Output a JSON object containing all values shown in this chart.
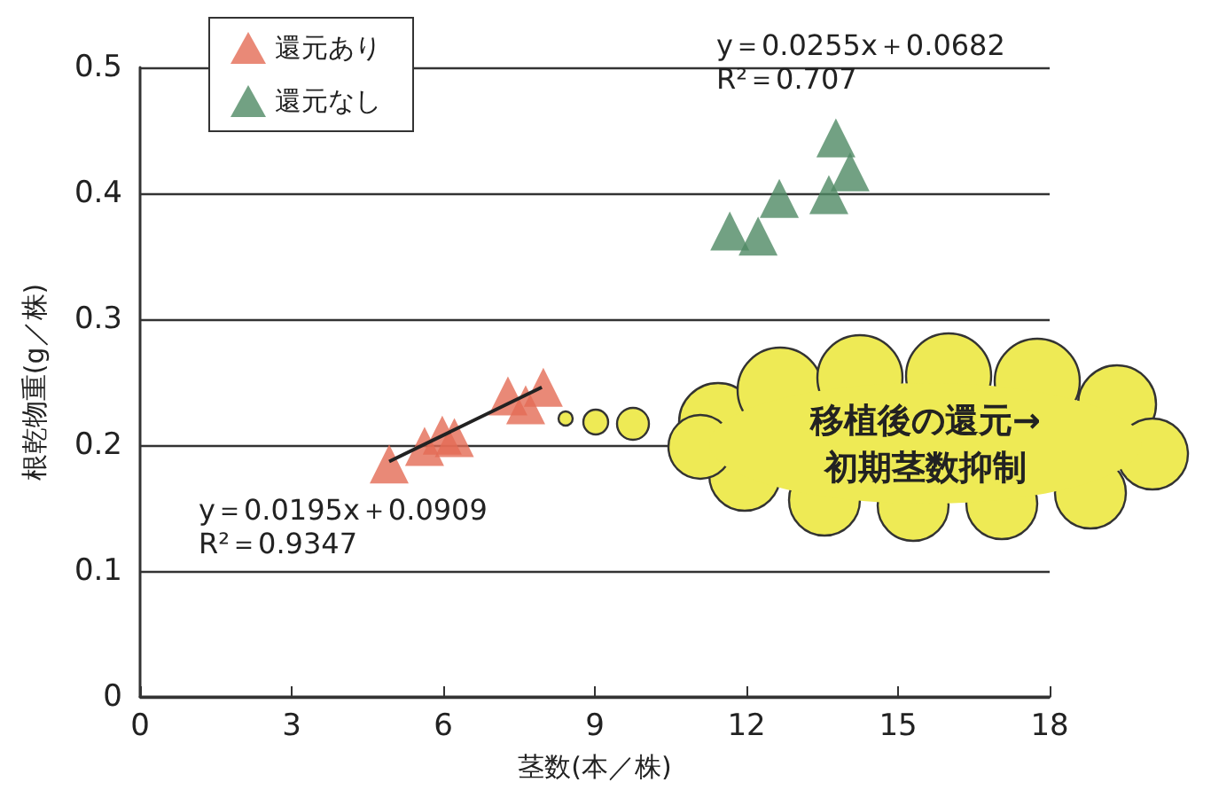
{
  "chart_data": {
    "type": "scatter",
    "xlabel": "茎数(本／株)",
    "ylabel": "根乾物重(g／株)",
    "xlim": [
      0,
      18
    ],
    "xticks": [
      0,
      3,
      6,
      9,
      12,
      15,
      18
    ],
    "ylim": [
      0,
      0.5
    ],
    "yticks": [
      0,
      0.1,
      0.2,
      0.3,
      0.4,
      0.5
    ],
    "grid": "y",
    "legend": "top left",
    "marker": "triangle",
    "series": [
      {
        "name": "還元あり",
        "color": "#e36c55",
        "x": [
          4.93,
          5.63,
          5.98,
          6.22,
          7.28,
          7.63,
          7.98
        ],
        "values": [
          0.185,
          0.199,
          0.208,
          0.206,
          0.239,
          0.232,
          0.246
        ]
      },
      {
        "name": "還元なし",
        "color": "#4f8a64",
        "x": [
          11.67,
          12.23,
          12.65,
          13.63,
          14.05,
          13.77
        ],
        "values": [
          0.37,
          0.366,
          0.396,
          0.399,
          0.417,
          0.444
        ]
      },
      {
        "type": "line",
        "color": "#222222",
        "x": [
          4.93,
          7.95
        ],
        "values": [
          0.187,
          0.246
        ],
        "marker": "none",
        "line_style": "solid"
      }
    ],
    "annotations": [
      "y＝0.0195x＋0.0909\nR²＝0.9347",
      "y＝0.0255x＋0.0682\nR²＝0.707",
      "移植後の還元→\n初期茎数抑制"
    ]
  }
}
